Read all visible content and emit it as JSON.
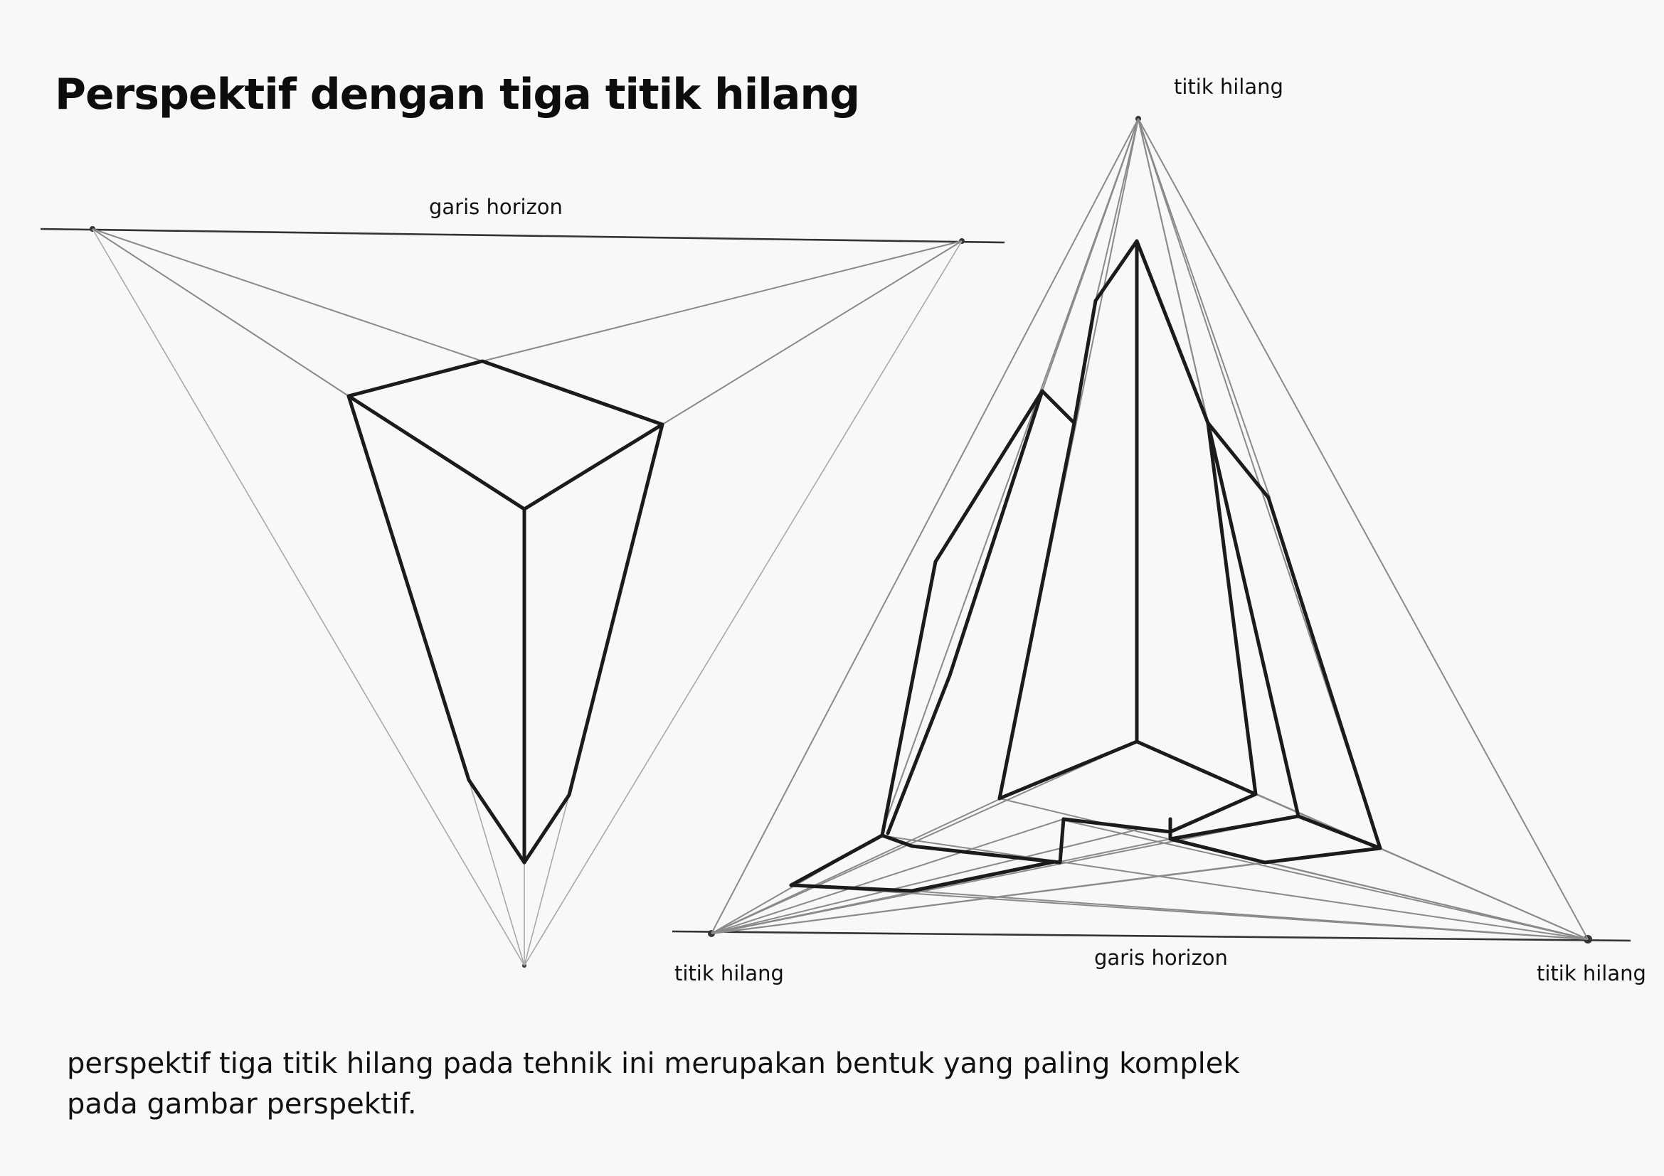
{
  "title": "Perspektif dengan tiga titik hilang",
  "labels": {
    "horizon_left": "garis horizon",
    "vanishing_point_top": "titik hilang",
    "horizon_bottom": "garis horizon",
    "vanishing_point_bottom_left": "titik hilang",
    "vanishing_point_bottom_right": "titik hilang"
  },
  "caption": {
    "line1": "perspektif tiga titik hilang pada tehnik ini merupakan bentuk yang paling komplek",
    "line2": "pada gambar perspektif."
  }
}
